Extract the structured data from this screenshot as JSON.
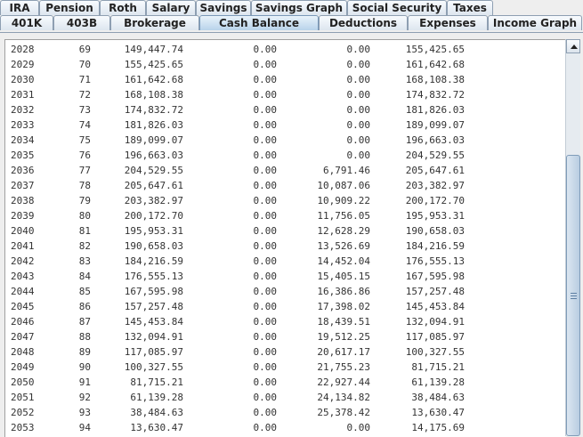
{
  "tabs_row1": [
    "IRA",
    "Pension",
    "Roth",
    "Salary",
    "Savings",
    "Savings Graph",
    "Social Security",
    "Taxes"
  ],
  "tabs_row2": [
    "401K",
    "403B",
    "Brokerage",
    "Cash Balance",
    "Deductions",
    "Expenses",
    "Income Graph"
  ],
  "selected_tab": "Cash Balance",
  "table_rows": [
    [
      "2028",
      "69",
      "149,447.74",
      "0.00",
      "0.00",
      "155,425.65"
    ],
    [
      "2029",
      "70",
      "155,425.65",
      "0.00",
      "0.00",
      "161,642.68"
    ],
    [
      "2030",
      "71",
      "161,642.68",
      "0.00",
      "0.00",
      "168,108.38"
    ],
    [
      "2031",
      "72",
      "168,108.38",
      "0.00",
      "0.00",
      "174,832.72"
    ],
    [
      "2032",
      "73",
      "174,832.72",
      "0.00",
      "0.00",
      "181,826.03"
    ],
    [
      "2033",
      "74",
      "181,826.03",
      "0.00",
      "0.00",
      "189,099.07"
    ],
    [
      "2034",
      "75",
      "189,099.07",
      "0.00",
      "0.00",
      "196,663.03"
    ],
    [
      "2035",
      "76",
      "196,663.03",
      "0.00",
      "0.00",
      "204,529.55"
    ],
    [
      "2036",
      "77",
      "204,529.55",
      "0.00",
      "6,791.46",
      "205,647.61"
    ],
    [
      "2037",
      "78",
      "205,647.61",
      "0.00",
      "10,087.06",
      "203,382.97"
    ],
    [
      "2038",
      "79",
      "203,382.97",
      "0.00",
      "10,909.22",
      "200,172.70"
    ],
    [
      "2039",
      "80",
      "200,172.70",
      "0.00",
      "11,756.05",
      "195,953.31"
    ],
    [
      "2040",
      "81",
      "195,953.31",
      "0.00",
      "12,628.29",
      "190,658.03"
    ],
    [
      "2041",
      "82",
      "190,658.03",
      "0.00",
      "13,526.69",
      "184,216.59"
    ],
    [
      "2042",
      "83",
      "184,216.59",
      "0.00",
      "14,452.04",
      "176,555.13"
    ],
    [
      "2043",
      "84",
      "176,555.13",
      "0.00",
      "15,405.15",
      "167,595.98"
    ],
    [
      "2044",
      "85",
      "167,595.98",
      "0.00",
      "16,386.86",
      "157,257.48"
    ],
    [
      "2045",
      "86",
      "157,257.48",
      "0.00",
      "17,398.02",
      "145,453.84"
    ],
    [
      "2046",
      "87",
      "145,453.84",
      "0.00",
      "18,439.51",
      "132,094.91"
    ],
    [
      "2047",
      "88",
      "132,094.91",
      "0.00",
      "19,512.25",
      "117,085.97"
    ],
    [
      "2048",
      "89",
      "117,085.97",
      "0.00",
      "20,617.17",
      "100,327.55"
    ],
    [
      "2049",
      "90",
      "100,327.55",
      "0.00",
      "21,755.23",
      "81,715.21"
    ],
    [
      "2050",
      "91",
      "81,715.21",
      "0.00",
      "22,927.44",
      "61,139.28"
    ],
    [
      "2051",
      "92",
      "61,139.28",
      "0.00",
      "24,134.82",
      "38,484.63"
    ],
    [
      "2052",
      "93",
      "38,484.63",
      "0.00",
      "25,378.42",
      "13,630.47"
    ],
    [
      "2053",
      "94",
      "13,630.47",
      "0.00",
      "0.00",
      "14,175.69"
    ]
  ],
  "scrollbar": {
    "position_fraction": 0.3
  }
}
